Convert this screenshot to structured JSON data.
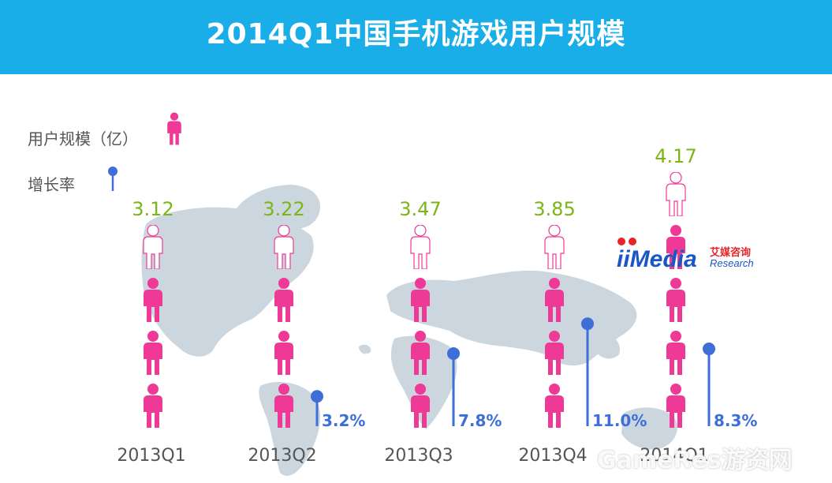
{
  "title": "2014Q1中国手机游戏用户规模",
  "legend": {
    "users_label": "用户规模（亿）",
    "growth_label": "增长率"
  },
  "logo": {
    "brand": "iiMedia",
    "cn": "艾媒咨询",
    "sub": "Research"
  },
  "watermark": "GameRes游资网",
  "colors": {
    "banner": "#19aee8",
    "person": "#ee3a96",
    "value": "#7cb518",
    "growth": "#3e6fd8",
    "map": "#ccd6de",
    "axis_label": "#555555"
  },
  "chart_data": {
    "type": "bar",
    "title": "2014Q1中国手机游戏用户规模",
    "categories": [
      "2013Q1",
      "2013Q2",
      "2013Q3",
      "2013Q4",
      "2014Q1"
    ],
    "series": [
      {
        "name": "用户规模（亿）",
        "values": [
          3.12,
          3.22,
          3.47,
          3.85,
          4.17
        ],
        "labels": [
          "3.12",
          "3.22",
          "3.47",
          "3.85",
          "4.17"
        ]
      },
      {
        "name": "增长率",
        "values": [
          null,
          3.2,
          7.8,
          11.0,
          8.3
        ],
        "labels": [
          "",
          "3.2%",
          "7.8%",
          "11.0%",
          "8.3%"
        ]
      }
    ],
    "legend_position": "top-left",
    "grid": false
  }
}
